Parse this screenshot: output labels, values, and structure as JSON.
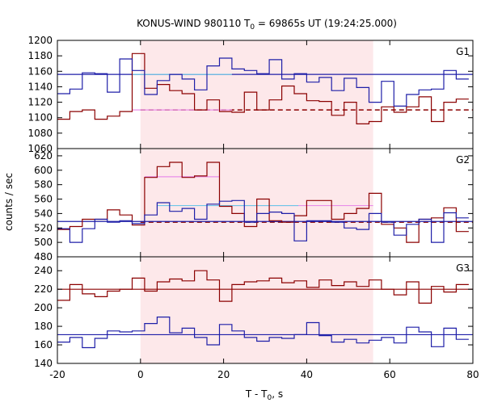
{
  "title": {
    "prefix": "KONUS-WIND 980110 T",
    "sub": "0",
    "suffix": " = 69865s UT (19:24:25.000)"
  },
  "xlabel": {
    "prefix": "T - T",
    "sub": "0",
    "suffix": ", s"
  },
  "ylabel": "counts / sec",
  "colors": {
    "red": "#8b0000",
    "blue": "#1f1fa8",
    "pink": "#e98ee9",
    "cyan": "#6fc6e8",
    "shade": "#fde8ea"
  },
  "chart_data": [
    {
      "type": "line",
      "panel": "G1",
      "xlim": [
        -20,
        80
      ],
      "ylim": [
        1060,
        1200
      ],
      "xticks": [
        -20,
        0,
        20,
        40,
        60,
        80
      ],
      "yticks": [
        1060,
        1080,
        1100,
        1120,
        1140,
        1160,
        1180,
        1200
      ],
      "shaded_interval": [
        0,
        56
      ],
      "bin_edges": [
        -20,
        -17,
        -14,
        -11,
        -8,
        -5,
        -2,
        1,
        4,
        7,
        10,
        13,
        16,
        19,
        22,
        25,
        28,
        31,
        34,
        37,
        40,
        43,
        46,
        49,
        52,
        55,
        58,
        61,
        64,
        67,
        70,
        73,
        76,
        79
      ],
      "series": [
        {
          "color": "red",
          "values": [
            1098,
            1108,
            1110,
            1098,
            1102,
            1108,
            1183,
            1138,
            1143,
            1135,
            1131,
            1110,
            1123,
            1108,
            1107,
            1133,
            1110,
            1123,
            1141,
            1131,
            1122,
            1121,
            1103,
            1120,
            1092,
            1095,
            1114,
            1107,
            1114,
            1127,
            1095,
            1120,
            1124
          ]
        },
        {
          "color": "blue",
          "values": [
            1131,
            1137,
            1158,
            1157,
            1133,
            1176,
            1161,
            1130,
            1148,
            1156,
            1150,
            1136,
            1167,
            1177,
            1163,
            1161,
            1157,
            1175,
            1150,
            1157,
            1146,
            1152,
            1135,
            1151,
            1139,
            1120,
            1147,
            1115,
            1130,
            1136,
            1137,
            1161,
            1150
          ]
        }
      ],
      "background_levels": [
        {
          "color": "red",
          "value": 1110,
          "style": "dashed",
          "x_range": [
            0,
            80
          ]
        },
        {
          "color": "blue",
          "value": 1156,
          "style": "solid",
          "x_range": [
            -20,
            80
          ]
        }
      ],
      "burst_levels": [
        {
          "color": "cyan",
          "value": 1156,
          "x_range": [
            -2,
            22
          ]
        },
        {
          "color": "pink",
          "value": 1110,
          "x_range": [
            -2,
            22
          ]
        }
      ]
    },
    {
      "type": "line",
      "panel": "G2",
      "xlim": [
        -20,
        80
      ],
      "ylim": [
        480,
        630
      ],
      "xticks": [
        -20,
        0,
        20,
        40,
        60,
        80
      ],
      "yticks": [
        480,
        500,
        520,
        540,
        560,
        580,
        600,
        620
      ],
      "shaded_interval": [
        0,
        56
      ],
      "bin_edges": [
        -20,
        -17,
        -14,
        -11,
        -8,
        -5,
        -2,
        1,
        4,
        7,
        10,
        13,
        16,
        19,
        22,
        25,
        28,
        31,
        34,
        37,
        40,
        43,
        46,
        49,
        52,
        55,
        58,
        61,
        64,
        67,
        70,
        73,
        76,
        79
      ],
      "series": [
        {
          "color": "red",
          "values": [
            518,
            522,
            532,
            532,
            545,
            538,
            524,
            590,
            605,
            611,
            590,
            592,
            611,
            550,
            540,
            522,
            560,
            530,
            528,
            537,
            558,
            558,
            532,
            540,
            547,
            568,
            525,
            520,
            500,
            532,
            534,
            548,
            515
          ]
        },
        {
          "color": "blue",
          "values": [
            519,
            500,
            519,
            532,
            528,
            530,
            526,
            538,
            555,
            543,
            547,
            532,
            553,
            557,
            558,
            528,
            540,
            542,
            540,
            502,
            530,
            530,
            528,
            520,
            518,
            540,
            528,
            510,
            525,
            532,
            500,
            541,
            534
          ]
        }
      ],
      "background_levels": [
        {
          "color": "red",
          "value": 528,
          "style": "dashed",
          "x_range": [
            0,
            80
          ]
        },
        {
          "color": "blue",
          "value": 529,
          "style": "solid",
          "x_range": [
            -20,
            80
          ]
        }
      ],
      "burst_levels": [
        {
          "color": "pink",
          "value": 591,
          "x_range": [
            1,
            19
          ]
        },
        {
          "color": "pink",
          "value": 551,
          "x_range": [
            19,
            56
          ]
        },
        {
          "color": "cyan",
          "value": 551,
          "x_range": [
            4,
            38
          ]
        }
      ]
    },
    {
      "type": "line",
      "panel": "G3",
      "xlim": [
        -20,
        80
      ],
      "ylim": [
        140,
        255
      ],
      "xticks": [
        -20,
        0,
        20,
        40,
        60,
        80
      ],
      "yticks": [
        140,
        160,
        180,
        200,
        220,
        240
      ],
      "shaded_interval": [
        0,
        56
      ],
      "bin_edges": [
        -20,
        -17,
        -14,
        -11,
        -8,
        -5,
        -2,
        1,
        4,
        7,
        10,
        13,
        16,
        19,
        22,
        25,
        28,
        31,
        34,
        37,
        40,
        43,
        46,
        49,
        52,
        55,
        58,
        61,
        64,
        67,
        70,
        73,
        76,
        79
      ],
      "series": [
        {
          "color": "red",
          "values": [
            208,
            225,
            215,
            212,
            218,
            220,
            232,
            218,
            228,
            231,
            229,
            240,
            230,
            207,
            225,
            228,
            229,
            232,
            227,
            229,
            222,
            230,
            224,
            228,
            223,
            230,
            220,
            214,
            228,
            205,
            223,
            217,
            225
          ]
        },
        {
          "color": "blue",
          "values": [
            163,
            168,
            157,
            167,
            175,
            174,
            175,
            183,
            190,
            173,
            178,
            168,
            160,
            182,
            175,
            168,
            164,
            168,
            167,
            171,
            184,
            170,
            163,
            166,
            162,
            165,
            168,
            162,
            179,
            174,
            158,
            178,
            166
          ]
        }
      ],
      "background_levels": [
        {
          "color": "red",
          "value": 220,
          "style": "solid",
          "x_range": [
            -20,
            80
          ]
        },
        {
          "color": "blue",
          "value": 171,
          "style": "solid",
          "x_range": [
            -20,
            80
          ]
        }
      ],
      "burst_levels": []
    }
  ]
}
